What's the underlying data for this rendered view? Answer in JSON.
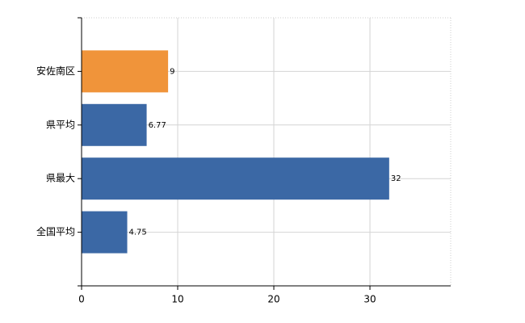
{
  "chart_data": {
    "type": "bar",
    "orientation": "horizontal",
    "categories": [
      "安佐南区",
      "県平均",
      "県最大",
      "全国平均"
    ],
    "values": [
      9,
      6.77,
      32,
      4.75
    ],
    "colors": [
      "#f0943a",
      "#3b68a5",
      "#3b68a5",
      "#3b68a5"
    ],
    "xlim": [
      0,
      38.4
    ],
    "xticks": [
      0,
      10,
      20,
      30
    ],
    "grid": true
  }
}
